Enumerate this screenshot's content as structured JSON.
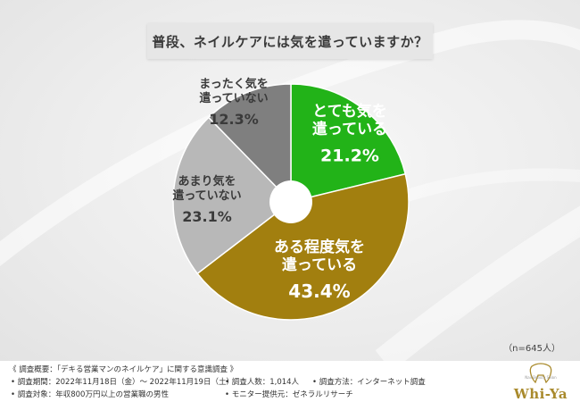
{
  "title": "普段、ネイルケアには気を遣っていますか？",
  "sample_note": "（n=645人）",
  "chart_data": {
    "type": "pie",
    "donut": true,
    "unit": "%",
    "slices": [
      {
        "label": "とても気を遣っている",
        "label_lines": [
          "とても気を",
          "遣っている"
        ],
        "value": 21.2,
        "display": "21.2%",
        "color": "#22b318",
        "text_color": "#ffffff"
      },
      {
        "label": "ある程度気を遣っている",
        "label_lines": [
          "ある程度気を",
          "遣っている"
        ],
        "value": 43.4,
        "display": "43.4%",
        "color": "#a27f0f",
        "text_color": "#ffffff"
      },
      {
        "label": "あまり気を遣っていない",
        "label_lines": [
          "あまり気を",
          "遣っていない"
        ],
        "value": 23.1,
        "display": "23.1%",
        "color": "#b8b8b8",
        "text_color": "#3a3a3a"
      },
      {
        "label": "まったく気を遣っていない",
        "label_lines": [
          "まったく気を",
          "遣っていない"
        ],
        "value": 12.3,
        "display": "12.3%",
        "color": "#7f7f7f",
        "text_color": "#3a3a3a"
      }
    ]
  },
  "footer": {
    "survey_title": "《 調査概要：「デキる営業マンのネイルケア」に関する意識調査 》",
    "period": "• 調査期間：2022年11月18日（金）～ 2022年11月19日（土）",
    "respondents": "• 調査人数：1,014人",
    "method": "• 調査方法：インターネット調査",
    "target": "• 調査対象：年収800万円以上の営業職の男性",
    "provider": "• モニター提供元：ゼネラルリサーチ",
    "logo_tagline": "Nail Beauty Salon",
    "logo_text": "Whi-Ya"
  },
  "colors": {
    "very": "#22b318",
    "somewhat": "#a27f0f",
    "not_much": "#b8b8b8",
    "not_at_all": "#7f7f7f",
    "logo": "#a98a2c"
  }
}
